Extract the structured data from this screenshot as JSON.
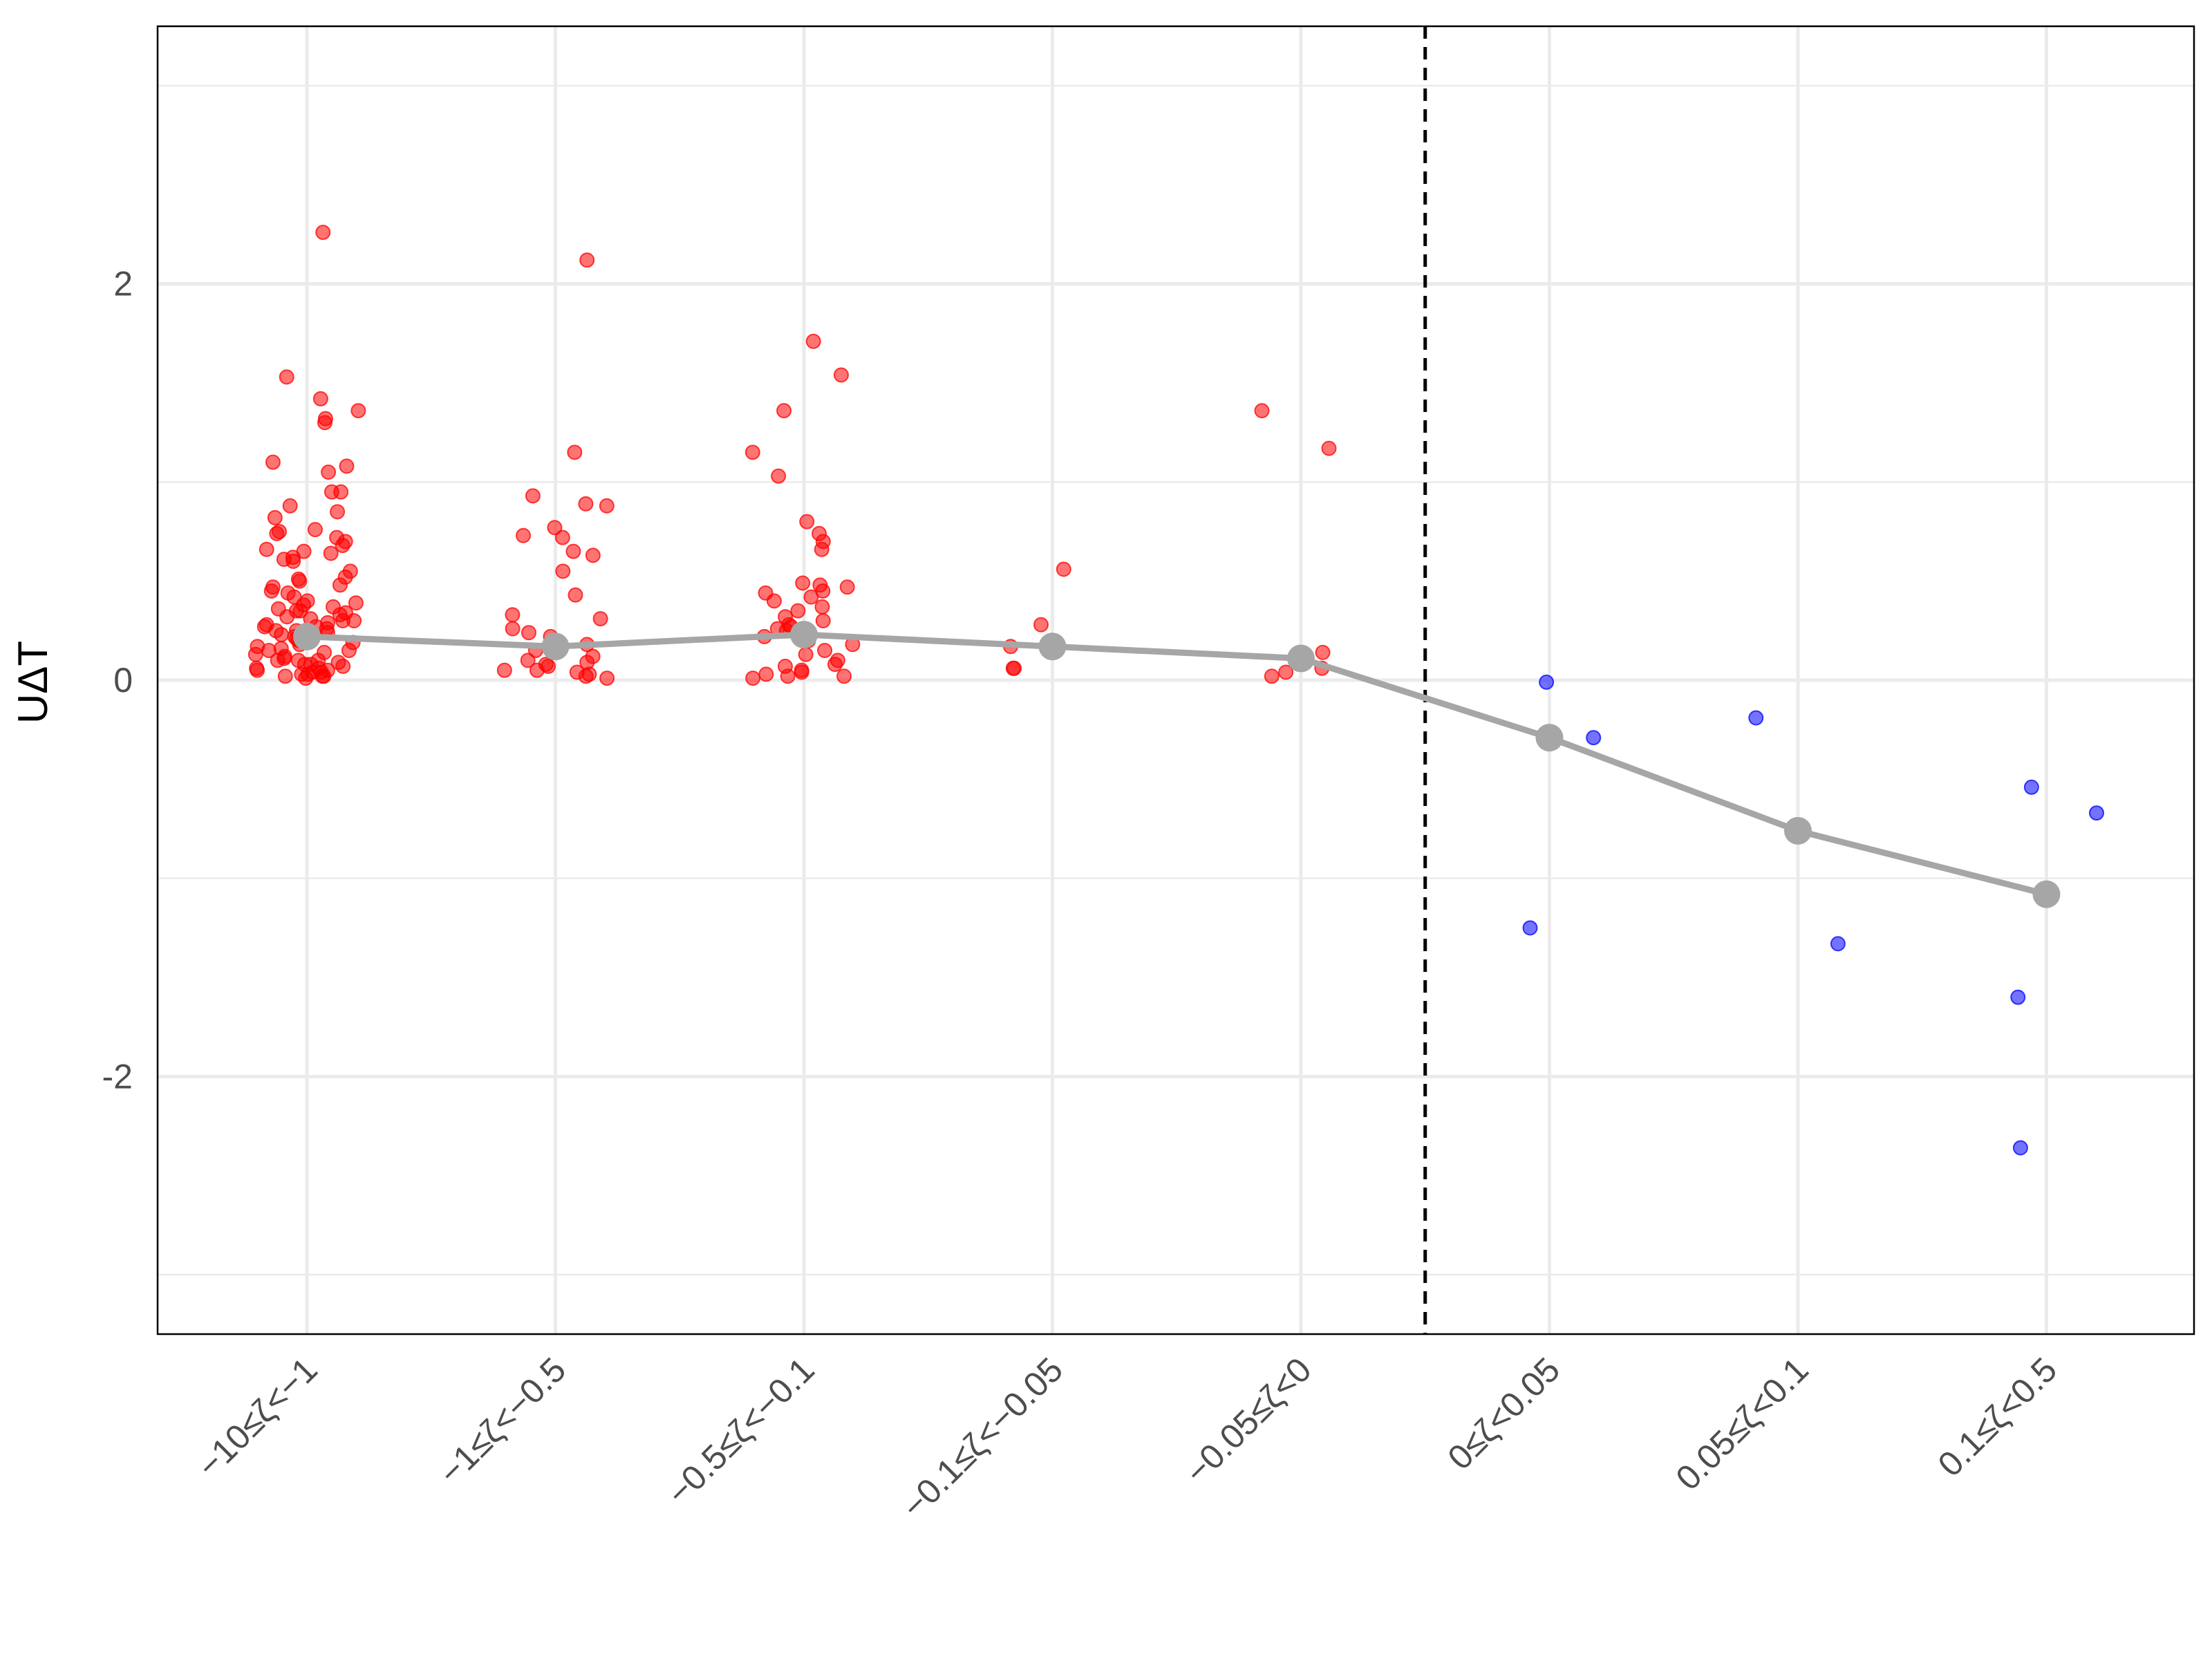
{
  "chart_data": {
    "type": "scatter",
    "title": "",
    "xlabel": "",
    "ylabel": "UΔT",
    "ylim": [
      -3.3,
      3.3
    ],
    "yticks": [
      -2,
      0,
      2
    ],
    "ytick_labels": [
      "-2",
      "0",
      "2"
    ],
    "grid": true,
    "legend": "none",
    "categories": [
      "−10≤ζ<−1",
      "−1≤ζ<−0.5",
      "−0.5≤ζ<−0.1",
      "−0.1≤ζ<−0.05",
      "−0.05≤ζ<0",
      "0≤ζ<0.05",
      "0.05≤ζ<0.1",
      "0.1≤ζ<0.5"
    ],
    "reference_line": {
      "x_between_categories": [
        4,
        5
      ],
      "style": "dashed",
      "color": "#000000"
    },
    "colors": {
      "negative": "#ff0000",
      "positive": "#0000ff",
      "mean_line": "#a6a6a6",
      "grid": "#ebebeb",
      "frame": "#000000"
    },
    "mean_series": {
      "values": [
        0.22,
        0.17,
        0.23,
        0.17,
        0.11,
        -0.29,
        -0.76,
        -1.08
      ]
    },
    "points": [
      {
        "category": 0,
        "color": "negative",
        "values": [
          2.26,
          1.53,
          1.42,
          1.36,
          1.32,
          1.3,
          1.1,
          1.08,
          1.05,
          0.95,
          0.95,
          0.88,
          0.85,
          0.82,
          0.76,
          0.75,
          0.74,
          0.72,
          0.7,
          0.68,
          0.66,
          0.65,
          0.64,
          0.62,
          0.61,
          0.6,
          0.55,
          0.52,
          0.51,
          0.5,
          0.48,
          0.47,
          0.45,
          0.44,
          0.42,
          0.4,
          0.39,
          0.38,
          0.37,
          0.36,
          0.35,
          0.34,
          0.33,
          0.32,
          0.31,
          0.3,
          0.29,
          0.28,
          0.27,
          0.27,
          0.26,
          0.25,
          0.24,
          0.23,
          0.22,
          0.21,
          0.2,
          0.19,
          0.18,
          0.17,
          0.16,
          0.15,
          0.14,
          0.13,
          0.12,
          0.11,
          0.1,
          0.1,
          0.09,
          0.08,
          0.08,
          0.07,
          0.06,
          0.05,
          0.05,
          0.04,
          0.03,
          0.03,
          0.02,
          0.02,
          0.01,
          0.3,
          0.25,
          0.2,
          0.15,
          0.1,
          0.06,
          0.04,
          0.02,
          0.35
        ]
      },
      {
        "category": 1,
        "color": "negative",
        "values": [
          2.12,
          1.15,
          0.93,
          0.89,
          0.88,
          0.77,
          0.73,
          0.72,
          0.65,
          0.63,
          0.55,
          0.43,
          0.33,
          0.31,
          0.26,
          0.24,
          0.22,
          0.18,
          0.15,
          0.12,
          0.1,
          0.09,
          0.08,
          0.07,
          0.05,
          0.05,
          0.04,
          0.03,
          0.02,
          0.01
        ]
      },
      {
        "category": 2,
        "color": "negative",
        "values": [
          1.71,
          1.54,
          1.36,
          1.15,
          1.03,
          0.8,
          0.74,
          0.7,
          0.66,
          0.49,
          0.48,
          0.47,
          0.45,
          0.44,
          0.42,
          0.4,
          0.37,
          0.35,
          0.32,
          0.3,
          0.28,
          0.27,
          0.26,
          0.25,
          0.22,
          0.2,
          0.18,
          0.15,
          0.13,
          0.1,
          0.08,
          0.07,
          0.05,
          0.04,
          0.03,
          0.02,
          0.02,
          0.01
        ]
      },
      {
        "category": 3,
        "color": "negative",
        "values": [
          0.56,
          0.28,
          0.17,
          0.06,
          0.06
        ]
      },
      {
        "category": 4,
        "color": "negative",
        "values": [
          1.36,
          1.17,
          0.14,
          0.06,
          0.04,
          0.02
        ]
      },
      {
        "category": 5,
        "color": "positive",
        "values": [
          -0.01,
          -0.29,
          -1.25
        ]
      },
      {
        "category": 6,
        "color": "positive",
        "values": [
          -0.19,
          -1.33
        ]
      },
      {
        "category": 7,
        "color": "positive",
        "values": [
          -0.54,
          -0.67,
          -1.6,
          -2.36
        ]
      }
    ]
  }
}
